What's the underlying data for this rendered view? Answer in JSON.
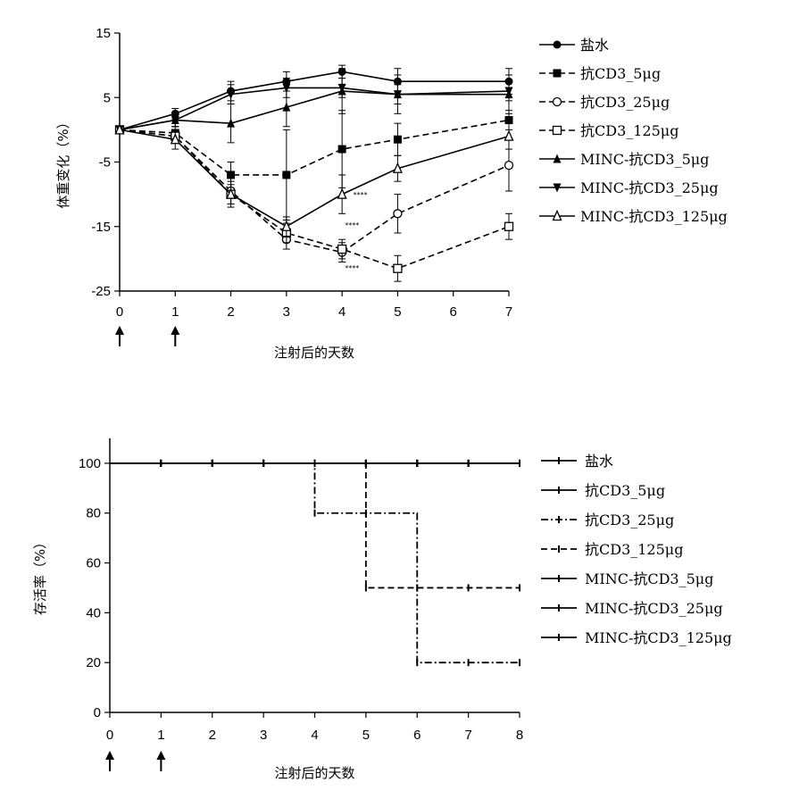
{
  "chart_data": [
    {
      "type": "line",
      "ylabel": "体重变化（%）",
      "xlabel": "注射后的天数",
      "xlim": [
        0,
        7
      ],
      "ylim": [
        -25,
        15
      ],
      "xticks": [
        "0",
        "1",
        "2",
        "3",
        "4",
        "5",
        "6",
        "7"
      ],
      "yticks": [
        "15",
        "5",
        "-5",
        "-15",
        "-25"
      ],
      "injection_days": [
        0,
        1
      ],
      "legend_position": "right",
      "series": [
        {
          "name": "盐水",
          "dash": "solid",
          "marker": "circle",
          "x": [
            0,
            1,
            2,
            3,
            4,
            5,
            7
          ],
          "y": [
            0,
            2.5,
            6.0,
            7.5,
            9.0,
            7.5,
            7.5
          ],
          "err": [
            0,
            0.8,
            1.5,
            1.5,
            1.0,
            2.0,
            2.0
          ]
        },
        {
          "name": "抗CD3_5μg",
          "dash": "dashed",
          "marker": "square",
          "x": [
            0,
            1,
            2,
            3,
            4,
            5,
            7
          ],
          "y": [
            0,
            -0.5,
            -7.0,
            -7.0,
            -3.0,
            -1.5,
            1.5
          ],
          "err": [
            0,
            1.0,
            2.0,
            7.0,
            6.0,
            2.5,
            1.5
          ]
        },
        {
          "name": "抗CD3_25μg",
          "dash": "dashed",
          "marker": "open-circle",
          "x": [
            0,
            1,
            2,
            3,
            4,
            5,
            7
          ],
          "y": [
            0,
            -1.0,
            -9.5,
            -17.0,
            -19.0,
            -13.0,
            -5.5
          ],
          "err": [
            0,
            1.0,
            2.0,
            1.5,
            1.5,
            3.0,
            4.0
          ]
        },
        {
          "name": "抗CD3_125μg",
          "dash": "dashed",
          "marker": "open-square",
          "x": [
            0,
            1,
            2,
            3,
            4,
            5,
            7
          ],
          "y": [
            0,
            -1.0,
            -10.0,
            -16.0,
            -18.5,
            -21.5,
            -15.0
          ],
          "err": [
            0,
            1.0,
            2.0,
            1.5,
            1.5,
            2.0,
            2.0
          ]
        },
        {
          "name": "MINC-抗CD3_5μg",
          "dash": "solid",
          "marker": "triangle-up",
          "x": [
            0,
            1,
            2,
            3,
            4,
            5,
            7
          ],
          "y": [
            0,
            1.5,
            1.0,
            3.5,
            6.0,
            5.5,
            5.5
          ],
          "err": [
            0,
            1.0,
            3.0,
            3.0,
            3.5,
            3.0,
            3.0
          ]
        },
        {
          "name": "MINC-抗CD3_25μg",
          "dash": "solid",
          "marker": "triangle-down",
          "x": [
            0,
            1,
            2,
            3,
            4,
            5,
            7
          ],
          "y": [
            0,
            1.5,
            5.5,
            6.5,
            6.5,
            5.5,
            6.0
          ],
          "err": [
            0,
            1.0,
            1.5,
            1.5,
            1.5,
            1.5,
            1.5
          ]
        },
        {
          "name": "MINC-抗CD3_125μg",
          "dash": "solid",
          "marker": "open-triangle",
          "x": [
            0,
            1,
            2,
            3,
            4,
            5,
            7
          ],
          "y": [
            0,
            -1.5,
            -10.0,
            -15.0,
            -10.0,
            -6.0,
            -1.0
          ],
          "err": [
            0,
            1.5,
            1.5,
            1.5,
            3.0,
            2.0,
            2.0
          ]
        }
      ],
      "annotations": [
        {
          "text": "****",
          "x": 4.05,
          "y": -15.2
        },
        {
          "text": "****",
          "x": 4.05,
          "y": -21.8
        },
        {
          "text": "****",
          "x": 4.2,
          "y": -10.5
        }
      ]
    },
    {
      "type": "line",
      "ylabel": "存活率（%）",
      "xlabel": "注射后的天数",
      "xlim": [
        0,
        8
      ],
      "ylim": [
        0,
        110
      ],
      "xticks": [
        "0",
        "1",
        "2",
        "3",
        "4",
        "5",
        "6",
        "7",
        "8"
      ],
      "yticks": [
        "100",
        "80",
        "60",
        "40",
        "20",
        "0"
      ],
      "injection_days": [
        0,
        1
      ],
      "legend_position": "right",
      "series": [
        {
          "name": "盐水",
          "dash": "solid",
          "x": [
            0,
            8
          ],
          "y": [
            100,
            100
          ]
        },
        {
          "name": "抗CD3_5μg",
          "dash": "solid",
          "x": [
            0,
            8
          ],
          "y": [
            100,
            100
          ]
        },
        {
          "name": "抗CD3_25μg",
          "dash": "dashdot",
          "x": [
            0,
            4,
            4,
            6,
            6,
            8
          ],
          "y": [
            100,
            100,
            80,
            80,
            20,
            20
          ]
        },
        {
          "name": "抗CD3_125μg",
          "dash": "dashed",
          "x": [
            0,
            5,
            5,
            8
          ],
          "y": [
            100,
            100,
            50,
            50
          ]
        },
        {
          "name": "MINC-抗CD3_5μg",
          "dash": "solid",
          "x": [
            0,
            8
          ],
          "y": [
            100,
            100
          ]
        },
        {
          "name": "MINC-抗CD3_25μg",
          "dash": "solid",
          "x": [
            0,
            8
          ],
          "y": [
            100,
            100
          ]
        },
        {
          "name": "MINC-抗CD3_125μg",
          "dash": "solid",
          "x": [
            0,
            8
          ],
          "y": [
            100,
            100
          ]
        }
      ]
    }
  ]
}
